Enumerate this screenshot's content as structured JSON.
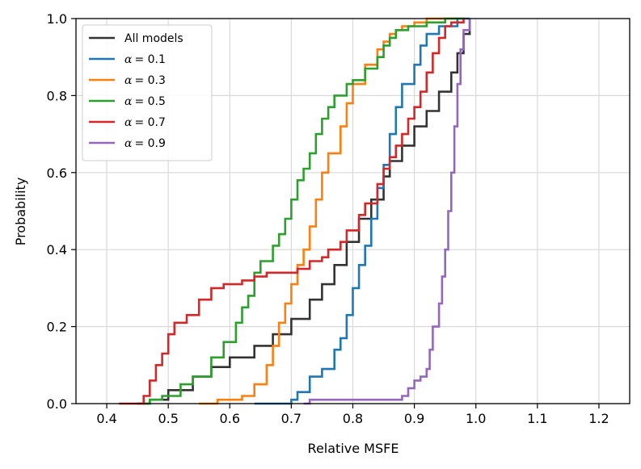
{
  "chart_data": {
    "type": "line",
    "subtype": "empirical-cdf-step",
    "title": "",
    "xlabel": "Relative MSFE",
    "ylabel": "Probability",
    "xlim": [
      0.35,
      1.25
    ],
    "ylim": [
      0.0,
      1.0
    ],
    "xticks": [
      0.4,
      0.5,
      0.6,
      0.7,
      0.8,
      0.9,
      1.0,
      1.1,
      1.2
    ],
    "xtick_labels": [
      "0.4",
      "0.5",
      "0.6",
      "0.7",
      "0.8",
      "0.9",
      "1.0",
      "1.1",
      "1.2"
    ],
    "yticks": [
      0.0,
      0.2,
      0.4,
      0.6,
      0.8,
      1.0
    ],
    "ytick_labels": [
      "0.0",
      "0.2",
      "0.4",
      "0.6",
      "0.8",
      "1.0"
    ],
    "grid": true,
    "legend_position": "top-left",
    "series": [
      {
        "name": "All models",
        "legend_symbol": "",
        "legend_value": "",
        "color": "#333333",
        "points": [
          [
            0.45,
            0.0
          ],
          [
            0.47,
            0.01
          ],
          [
            0.5,
            0.035
          ],
          [
            0.54,
            0.07
          ],
          [
            0.57,
            0.095
          ],
          [
            0.6,
            0.12
          ],
          [
            0.64,
            0.15
          ],
          [
            0.67,
            0.18
          ],
          [
            0.7,
            0.22
          ],
          [
            0.73,
            0.27
          ],
          [
            0.75,
            0.31
          ],
          [
            0.77,
            0.36
          ],
          [
            0.79,
            0.42
          ],
          [
            0.81,
            0.48
          ],
          [
            0.83,
            0.53
          ],
          [
            0.85,
            0.59
          ],
          [
            0.86,
            0.63
          ],
          [
            0.88,
            0.67
          ],
          [
            0.9,
            0.72
          ],
          [
            0.92,
            0.76
          ],
          [
            0.94,
            0.81
          ],
          [
            0.96,
            0.86
          ],
          [
            0.97,
            0.91
          ],
          [
            0.98,
            0.96
          ],
          [
            0.99,
            1.0
          ]
        ]
      },
      {
        "name": "α = 0.1",
        "legend_symbol": "α",
        "legend_value": "= 0.1",
        "color": "#1f77b4",
        "points": [
          [
            0.64,
            0.0
          ],
          [
            0.67,
            0.0
          ],
          [
            0.7,
            0.01
          ],
          [
            0.71,
            0.03
          ],
          [
            0.73,
            0.07
          ],
          [
            0.75,
            0.09
          ],
          [
            0.77,
            0.14
          ],
          [
            0.78,
            0.17
          ],
          [
            0.79,
            0.23
          ],
          [
            0.8,
            0.3
          ],
          [
            0.81,
            0.36
          ],
          [
            0.82,
            0.41
          ],
          [
            0.83,
            0.48
          ],
          [
            0.84,
            0.56
          ],
          [
            0.85,
            0.62
          ],
          [
            0.86,
            0.7
          ],
          [
            0.87,
            0.77
          ],
          [
            0.88,
            0.83
          ],
          [
            0.9,
            0.88
          ],
          [
            0.91,
            0.93
          ],
          [
            0.92,
            0.96
          ],
          [
            0.94,
            0.98
          ],
          [
            0.97,
            1.0
          ],
          [
            0.99,
            1.0
          ]
        ]
      },
      {
        "name": "α = 0.3",
        "legend_symbol": "α",
        "legend_value": "= 0.3",
        "color": "#ff7f0e",
        "points": [
          [
            0.55,
            0.0
          ],
          [
            0.57,
            0.0
          ],
          [
            0.58,
            0.01
          ],
          [
            0.6,
            0.01
          ],
          [
            0.62,
            0.02
          ],
          [
            0.64,
            0.05
          ],
          [
            0.66,
            0.1
          ],
          [
            0.67,
            0.15
          ],
          [
            0.68,
            0.21
          ],
          [
            0.69,
            0.26
          ],
          [
            0.7,
            0.31
          ],
          [
            0.71,
            0.36
          ],
          [
            0.72,
            0.4
          ],
          [
            0.73,
            0.46
          ],
          [
            0.74,
            0.53
          ],
          [
            0.75,
            0.6
          ],
          [
            0.76,
            0.65
          ],
          [
            0.78,
            0.72
          ],
          [
            0.79,
            0.78
          ],
          [
            0.8,
            0.83
          ],
          [
            0.82,
            0.88
          ],
          [
            0.84,
            0.92
          ],
          [
            0.85,
            0.94
          ],
          [
            0.86,
            0.96
          ],
          [
            0.87,
            0.97
          ],
          [
            0.88,
            0.98
          ],
          [
            0.9,
            0.99
          ],
          [
            0.92,
            1.0
          ],
          [
            0.97,
            1.0
          ]
        ]
      },
      {
        "name": "α = 0.5",
        "legend_symbol": "α",
        "legend_value": "= 0.5",
        "color": "#2ca02c",
        "points": [
          [
            0.46,
            0.0
          ],
          [
            0.47,
            0.01
          ],
          [
            0.49,
            0.02
          ],
          [
            0.52,
            0.05
          ],
          [
            0.54,
            0.07
          ],
          [
            0.57,
            0.12
          ],
          [
            0.59,
            0.16
          ],
          [
            0.61,
            0.21
          ],
          [
            0.62,
            0.25
          ],
          [
            0.63,
            0.28
          ],
          [
            0.64,
            0.34
          ],
          [
            0.65,
            0.37
          ],
          [
            0.67,
            0.41
          ],
          [
            0.68,
            0.44
          ],
          [
            0.69,
            0.48
          ],
          [
            0.7,
            0.53
          ],
          [
            0.71,
            0.58
          ],
          [
            0.72,
            0.61
          ],
          [
            0.73,
            0.65
          ],
          [
            0.74,
            0.7
          ],
          [
            0.75,
            0.74
          ],
          [
            0.76,
            0.77
          ],
          [
            0.77,
            0.8
          ],
          [
            0.79,
            0.83
          ],
          [
            0.8,
            0.84
          ],
          [
            0.82,
            0.87
          ],
          [
            0.84,
            0.9
          ],
          [
            0.85,
            0.93
          ],
          [
            0.86,
            0.95
          ],
          [
            0.87,
            0.97
          ],
          [
            0.89,
            0.98
          ],
          [
            0.92,
            0.99
          ],
          [
            0.95,
            1.0
          ],
          [
            0.98,
            1.0
          ]
        ]
      },
      {
        "name": "α = 0.7",
        "legend_symbol": "α",
        "legend_value": "= 0.7",
        "color": "#d62728",
        "points": [
          [
            0.42,
            0.0
          ],
          [
            0.45,
            0.0
          ],
          [
            0.46,
            0.02
          ],
          [
            0.47,
            0.06
          ],
          [
            0.48,
            0.1
          ],
          [
            0.49,
            0.13
          ],
          [
            0.5,
            0.18
          ],
          [
            0.51,
            0.21
          ],
          [
            0.53,
            0.23
          ],
          [
            0.55,
            0.27
          ],
          [
            0.57,
            0.3
          ],
          [
            0.59,
            0.31
          ],
          [
            0.62,
            0.32
          ],
          [
            0.64,
            0.33
          ],
          [
            0.66,
            0.34
          ],
          [
            0.7,
            0.34
          ],
          [
            0.71,
            0.35
          ],
          [
            0.73,
            0.37
          ],
          [
            0.75,
            0.38
          ],
          [
            0.76,
            0.4
          ],
          [
            0.78,
            0.42
          ],
          [
            0.79,
            0.45
          ],
          [
            0.81,
            0.49
          ],
          [
            0.82,
            0.52
          ],
          [
            0.84,
            0.57
          ],
          [
            0.85,
            0.61
          ],
          [
            0.86,
            0.64
          ],
          [
            0.87,
            0.67
          ],
          [
            0.88,
            0.7
          ],
          [
            0.89,
            0.74
          ],
          [
            0.9,
            0.77
          ],
          [
            0.91,
            0.81
          ],
          [
            0.92,
            0.86
          ],
          [
            0.93,
            0.91
          ],
          [
            0.94,
            0.95
          ],
          [
            0.95,
            0.98
          ],
          [
            0.96,
            0.99
          ],
          [
            0.98,
            1.0
          ]
        ]
      },
      {
        "name": "α = 0.9",
        "legend_symbol": "α",
        "legend_value": "= 0.9",
        "color": "#9467bd",
        "points": [
          [
            0.72,
            0.0
          ],
          [
            0.73,
            0.01
          ],
          [
            0.8,
            0.01
          ],
          [
            0.87,
            0.01
          ],
          [
            0.88,
            0.02
          ],
          [
            0.89,
            0.04
          ],
          [
            0.9,
            0.06
          ],
          [
            0.91,
            0.07
          ],
          [
            0.92,
            0.09
          ],
          [
            0.925,
            0.14
          ],
          [
            0.93,
            0.2
          ],
          [
            0.94,
            0.26
          ],
          [
            0.945,
            0.33
          ],
          [
            0.95,
            0.4
          ],
          [
            0.955,
            0.5
          ],
          [
            0.96,
            0.6
          ],
          [
            0.965,
            0.72
          ],
          [
            0.97,
            0.83
          ],
          [
            0.975,
            0.92
          ],
          [
            0.98,
            0.97
          ],
          [
            0.99,
            1.0
          ]
        ]
      }
    ]
  }
}
